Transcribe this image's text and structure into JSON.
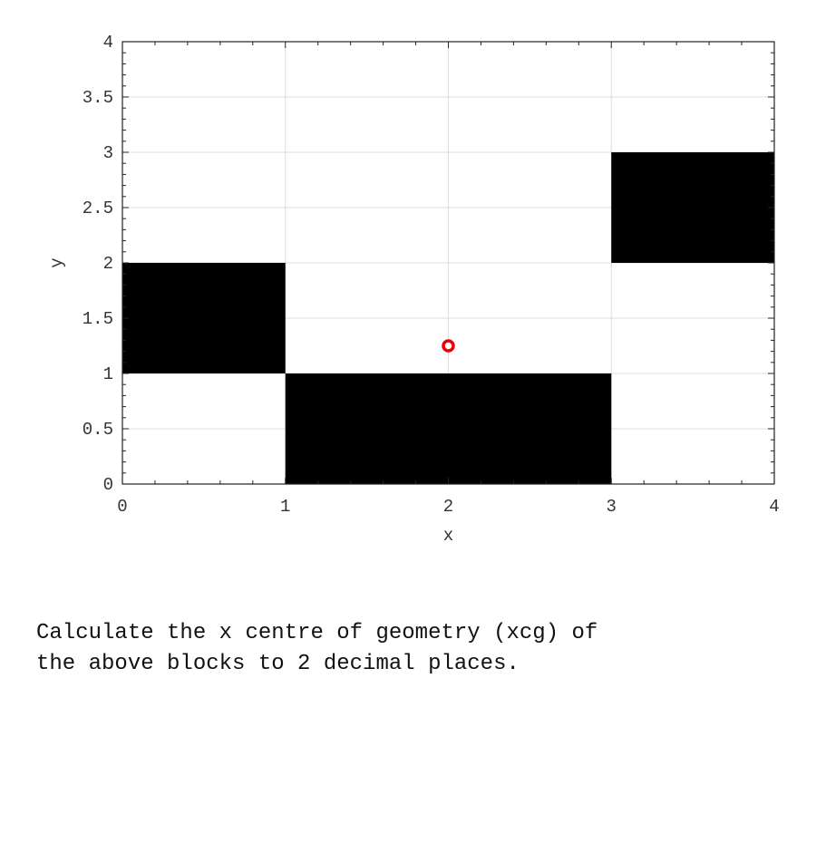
{
  "chart_data": {
    "type": "scatter",
    "title": "",
    "xlabel": "x",
    "ylabel": "y",
    "xlim": [
      0,
      4
    ],
    "ylim": [
      0,
      4
    ],
    "xticks": [
      0,
      1,
      2,
      3,
      4
    ],
    "yticks": [
      0,
      0.5,
      1,
      1.5,
      2,
      2.5,
      3,
      3.5,
      4
    ],
    "ytick_labels": [
      "0",
      "0.5",
      "1",
      "1.5",
      "2",
      "2.5",
      "3",
      "3.5",
      "4"
    ],
    "xtick_labels": [
      "0",
      "1",
      "2",
      "3",
      "4"
    ],
    "grid": true,
    "blocks": [
      {
        "x0": 0,
        "x1": 1,
        "y0": 1,
        "y1": 2,
        "color": "#000000"
      },
      {
        "x0": 1,
        "x1": 3,
        "y0": 0,
        "y1": 1,
        "color": "#000000"
      },
      {
        "x0": 3,
        "x1": 4,
        "y0": 2,
        "y1": 3,
        "color": "#000000"
      }
    ],
    "points": [
      {
        "x": 2,
        "y": 1.25,
        "marker": "circle",
        "color": "#e8000b"
      }
    ]
  },
  "question": "Calculate the x centre of geometry (xcg) of\nthe above blocks to 2 decimal places."
}
